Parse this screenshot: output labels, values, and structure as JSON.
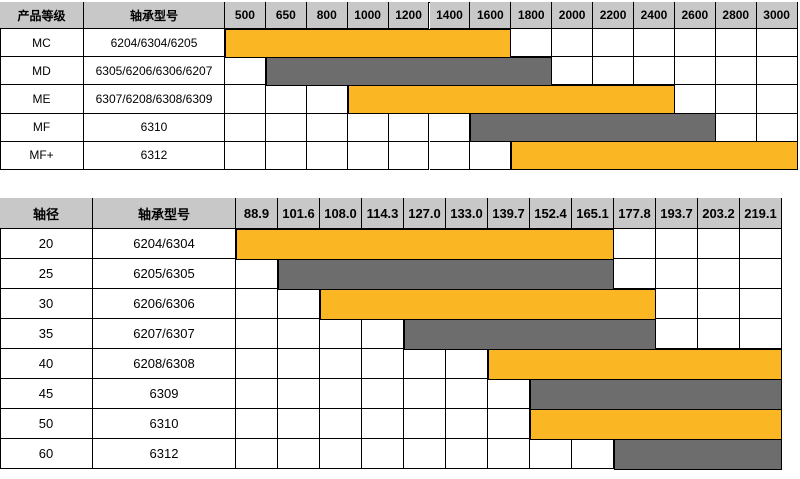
{
  "colors": {
    "yellow": "#fbb624",
    "gray": "#6d6d6d",
    "header": "#c8c8c8"
  },
  "table1": {
    "header_level": "产品等级",
    "header_model": "轴承型号",
    "columns": [
      "500",
      "650",
      "800",
      "1000",
      "1200",
      "1400",
      "1600",
      "1800",
      "2000",
      "2200",
      "2400",
      "2600",
      "2800",
      "3000"
    ],
    "rows": [
      {
        "level": "MC",
        "model": "6204/6304/6205",
        "start": 0,
        "end": 7,
        "color": "yellow"
      },
      {
        "level": "MD",
        "model": "6305/6206/6306/6207",
        "start": 1,
        "end": 8,
        "color": "gray"
      },
      {
        "level": "ME",
        "model": "6307/6208/6308/6309",
        "start": 3,
        "end": 11,
        "color": "yellow"
      },
      {
        "level": "MF",
        "model": "6310",
        "start": 6,
        "end": 12,
        "color": "gray"
      },
      {
        "level": "MF+",
        "model": "6312",
        "start": 7,
        "end": 14,
        "color": "yellow"
      }
    ]
  },
  "table2": {
    "header_level": "轴径",
    "header_model": "轴承型号",
    "columns": [
      "88.9",
      "101.6",
      "108.0",
      "114.3",
      "127.0",
      "133.0",
      "139.7",
      "152.4",
      "165.1",
      "177.8",
      "193.7",
      "203.2",
      "219.1"
    ],
    "rows": [
      {
        "level": "20",
        "model": "6204/6304",
        "start": 0,
        "end": 9,
        "color": "yellow"
      },
      {
        "level": "25",
        "model": "6205/6305",
        "start": 1,
        "end": 9,
        "color": "gray"
      },
      {
        "level": "30",
        "model": "6206/6306",
        "start": 2,
        "end": 10,
        "color": "yellow"
      },
      {
        "level": "35",
        "model": "6207/6307",
        "start": 4,
        "end": 10,
        "color": "gray"
      },
      {
        "level": "40",
        "model": "6208/6308",
        "start": 6,
        "end": 13,
        "color": "yellow"
      },
      {
        "level": "45",
        "model": "6309",
        "start": 7,
        "end": 13,
        "color": "gray"
      },
      {
        "level": "50",
        "model": "6310",
        "start": 7,
        "end": 13,
        "color": "yellow"
      },
      {
        "level": "60",
        "model": "6312",
        "start": 9,
        "end": 13,
        "color": "gray"
      }
    ]
  }
}
